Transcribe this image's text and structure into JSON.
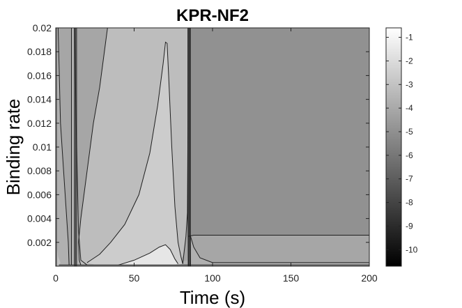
{
  "chart_data": {
    "type": "heatmap",
    "title": "KPR-NF2",
    "xlabel": "Time (s)",
    "ylabel": "Binding rate",
    "xlim": [
      0,
      200
    ],
    "ylim": [
      0,
      0.02
    ],
    "x_ticks": [
      0,
      50,
      100,
      150,
      200
    ],
    "x_tick_labels": [
      "0",
      "50",
      "100",
      "150",
      "200"
    ],
    "y_ticks": [
      0.002,
      0.004,
      0.006,
      0.008,
      0.01,
      0.012,
      0.014,
      0.016,
      0.018,
      0.02
    ],
    "y_tick_labels": [
      "0.002",
      "0.004",
      "0.006",
      "0.008",
      "0.01",
      "0.012",
      "0.014",
      "0.016",
      "0.018",
      "0.02"
    ],
    "colorbar": {
      "ticks": [
        -1,
        -2,
        -3,
        -4,
        -5,
        -6,
        -7,
        -8,
        -9,
        -10
      ],
      "tick_labels": [
        "-1",
        "-2",
        "-3",
        "-4",
        "-5",
        "-6",
        "-7",
        "-8",
        "-9",
        "-10"
      ],
      "range": [
        -10.7,
        -0.6
      ],
      "colormap": "gray"
    },
    "contour_regions": [
      {
        "level": -5.5,
        "color": "#919191",
        "polygon": [
          [
            84.5,
            0.02
          ],
          [
            84.5,
            0.0025
          ],
          [
            88,
            0.0026
          ],
          [
            92,
            0.0026
          ],
          [
            200,
            0.0026
          ],
          [
            200,
            0.02
          ]
        ]
      },
      {
        "level": -4.5,
        "color": "#a6a6a6",
        "polygon": [
          [
            12,
            0.02
          ],
          [
            13,
            0.012
          ],
          [
            14.5,
            0.003
          ],
          [
            16,
            0.0005
          ],
          [
            20,
            0.0001
          ],
          [
            40,
            0.0002
          ],
          [
            60,
            0.0003
          ],
          [
            80,
            0.0004
          ],
          [
            84.5,
            0.0005
          ],
          [
            84.5,
            0.02
          ]
        ]
      },
      {
        "level": -4.5,
        "color": "#a6a6a6",
        "polygon": [
          [
            86,
            0.0025
          ],
          [
            88,
            0.0016
          ],
          [
            92,
            0.0007
          ],
          [
            100,
            0.0003
          ],
          [
            120,
            0.0003
          ],
          [
            200,
            0.0003
          ],
          [
            200,
            0.0026
          ],
          [
            92,
            0.0026
          ],
          [
            88,
            0.0026
          ]
        ]
      },
      {
        "level": -4.5,
        "color": "#a6a6a6",
        "polygon": [
          [
            1.5,
            0.02
          ],
          [
            3,
            0.012
          ],
          [
            6,
            0.006
          ],
          [
            8,
            0.002
          ],
          [
            8.5,
            0.0001
          ],
          [
            10,
            0.0001
          ],
          [
            10,
            0.02
          ]
        ]
      },
      {
        "level": -3.5,
        "color": "#bdbdbd",
        "polygon": [
          [
            33,
            0.02
          ],
          [
            28,
            0.015
          ],
          [
            24,
            0.012
          ],
          [
            20,
            0.008
          ],
          [
            16,
            0.004
          ],
          [
            14.5,
            0.002
          ],
          [
            15,
            0.0005
          ],
          [
            16,
            0.0001
          ],
          [
            20,
            0.0001
          ],
          [
            40,
            0.0003
          ],
          [
            60,
            0.0005
          ],
          [
            76,
            0.0003
          ],
          [
            81,
            0.0008
          ],
          [
            83,
            0.0025
          ],
          [
            84,
            0.0045
          ],
          [
            84.3,
            0.012
          ],
          [
            84.4,
            0.02
          ]
        ]
      },
      {
        "level": -3.0,
        "color": "#cccccc",
        "polygon": [
          [
            20,
            0.0003
          ],
          [
            28,
            0.001
          ],
          [
            35,
            0.002
          ],
          [
            44,
            0.0035
          ],
          [
            53,
            0.006
          ],
          [
            60,
            0.0095
          ],
          [
            65,
            0.0135
          ],
          [
            68.5,
            0.017
          ],
          [
            70,
            0.0188
          ],
          [
            71,
            0.0187
          ],
          [
            72,
            0.016
          ],
          [
            74,
            0.01
          ],
          [
            76,
            0.005
          ],
          [
            78,
            0.002
          ],
          [
            80,
            0.0007
          ],
          [
            81,
            0.0002
          ],
          [
            78,
            0.0001
          ],
          [
            60,
            0.0001
          ],
          [
            40,
            0.0001
          ],
          [
            25,
            0.0001
          ]
        ]
      },
      {
        "level": -2.2,
        "color": "#e6e6e6",
        "polygon": [
          [
            40,
            0.0001
          ],
          [
            50,
            0.0005
          ],
          [
            60,
            0.0011
          ],
          [
            66,
            0.0016
          ],
          [
            70,
            0.0018
          ],
          [
            73,
            0.0014
          ],
          [
            76,
            0.0006
          ],
          [
            78,
            0.0002
          ],
          [
            76,
            0.0001
          ],
          [
            60,
            0.0001
          ]
        ]
      },
      {
        "level": -1.8,
        "color": "#c2c2c2",
        "polygon": [
          [
            0.3,
            0.0001
          ],
          [
            0.3,
            0.002
          ],
          [
            1.5,
            0.0008
          ],
          [
            3,
            0.0003
          ],
          [
            2,
            0.0001
          ]
        ]
      }
    ],
    "contour_lines": [
      [
        [
          12,
          0.02
        ],
        [
          13,
          0.012
        ],
        [
          14.5,
          0.003
        ],
        [
          16,
          0.0005
        ],
        [
          20,
          0.0001
        ]
      ],
      [
        [
          33,
          0.02
        ],
        [
          28,
          0.015
        ],
        [
          24,
          0.012
        ],
        [
          20,
          0.008
        ],
        [
          16,
          0.004
        ],
        [
          14.5,
          0.002
        ],
        [
          15,
          0.0005
        ],
        [
          16,
          0.0001
        ]
      ],
      [
        [
          20,
          0.0003
        ],
        [
          28,
          0.001
        ],
        [
          35,
          0.002
        ],
        [
          44,
          0.0035
        ],
        [
          53,
          0.006
        ],
        [
          60,
          0.0095
        ],
        [
          65,
          0.0135
        ],
        [
          68.5,
          0.017
        ],
        [
          70,
          0.0188
        ],
        [
          71,
          0.0187
        ],
        [
          72,
          0.016
        ],
        [
          74,
          0.01
        ],
        [
          76,
          0.005
        ],
        [
          78,
          0.002
        ],
        [
          80,
          0.0007
        ],
        [
          81,
          0.0002
        ]
      ],
      [
        [
          40,
          0.0001
        ],
        [
          50,
          0.0005
        ],
        [
          60,
          0.0011
        ],
        [
          66,
          0.0016
        ],
        [
          70,
          0.0018
        ],
        [
          73,
          0.0014
        ],
        [
          76,
          0.0006
        ],
        [
          78,
          0.0002
        ]
      ],
      [
        [
          84.3,
          0.02
        ],
        [
          84.3,
          0.004
        ],
        [
          84.6,
          0.0
        ]
      ],
      [
        [
          85.6,
          0.02
        ],
        [
          85.6,
          0.003
        ],
        [
          86,
          0.0
        ]
      ],
      [
        [
          84.5,
          0.0025
        ],
        [
          88,
          0.0026
        ],
        [
          92,
          0.0026
        ],
        [
          200,
          0.0026
        ]
      ],
      [
        [
          86,
          0.0025
        ],
        [
          88,
          0.0016
        ],
        [
          92,
          0.0007
        ],
        [
          100,
          0.0003
        ],
        [
          120,
          0.0003
        ],
        [
          200,
          0.0003
        ]
      ],
      [
        [
          1.5,
          0.02
        ],
        [
          3,
          0.012
        ],
        [
          6,
          0.006
        ],
        [
          8,
          0.002
        ],
        [
          8.5,
          0.0001
        ]
      ],
      [
        [
          10,
          0.02
        ],
        [
          10,
          0.0001
        ]
      ],
      [
        [
          81,
          0.0002
        ],
        [
          83,
          0.0025
        ],
        [
          84,
          0.0045
        ],
        [
          84.3,
          0.012
        ],
        [
          84.4,
          0.02
        ]
      ],
      [
        [
          2,
          0.0001
        ],
        [
          60,
          0.0001
        ],
        [
          200,
          0.0001
        ]
      ]
    ],
    "dark_bands": [
      {
        "x_range": [
          11.6,
          13.6
        ],
        "color": "#505050"
      },
      {
        "x_range": [
          84.2,
          86.2
        ],
        "color": "#4a4a4a"
      },
      {
        "x_range": [
          0.0,
          0.8
        ],
        "color": "#6a6a6a"
      }
    ],
    "grid": false
  }
}
